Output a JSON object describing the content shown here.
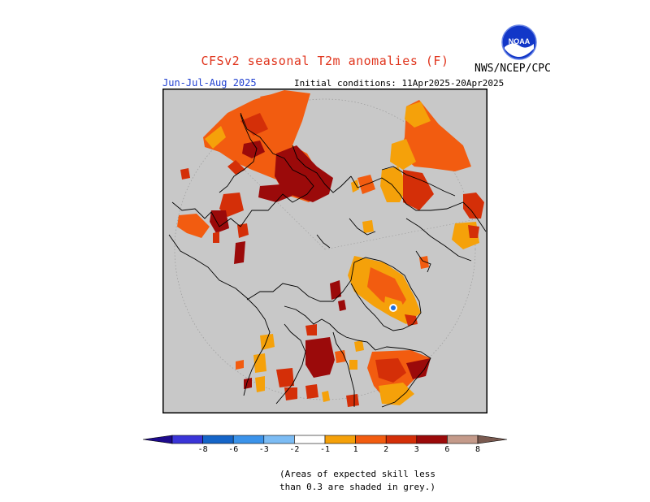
{
  "title": "CFSv2 seasonal T2m anomalies (F)",
  "organization": "NWS/NCEP/CPC",
  "logo_text": "NOAA",
  "season": "Jun-Jul-Aug 2025",
  "initial_conditions": "Initial conditions: 11Apr2025-20Apr2025",
  "footnote": "(Areas of expected skill less\nthan 0.3 are shaded in grey.)",
  "colorbar": {
    "ticks": [
      "-8",
      "-6",
      "-3",
      "-2",
      "-1",
      "1",
      "2",
      "3",
      "6",
      "8"
    ],
    "colors": [
      "#1d0a8c",
      "#3a35d8",
      "#1565c8",
      "#3b93ea",
      "#7cbcf4",
      "#ffffff",
      "#f5a10a",
      "#f25c10",
      "#d42f08",
      "#9b0a0a",
      "#c49a8a",
      "#7a5a50"
    ]
  },
  "map_colors": {
    "no_skill_grey": "#c8c8c8",
    "anom_1_2": "#f5a10a",
    "anom_2_3": "#f25c10",
    "anom_3_6": "#d42f08",
    "anom_6_8": "#9b0a0a",
    "coastline": "#000000",
    "land_white": "#ffffff"
  }
}
